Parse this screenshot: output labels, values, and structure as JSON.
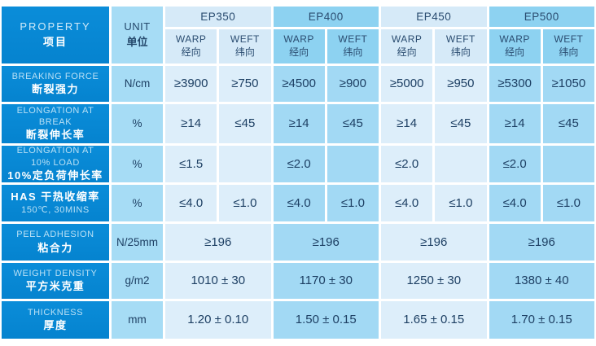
{
  "palette": {
    "property_column": "#0689d5",
    "unit_column": "#a6dcf5",
    "group_light_header": "#d6eaf8",
    "group_light_cell": "#ddeefa",
    "group_medium_header": "#8dd2f1",
    "group_medium_cell": "#a2d9f4",
    "value_text": "#1d3f63",
    "label_text_light": "#b9e0f5",
    "label_text_white": "#ffffff"
  },
  "table": {
    "property_header": {
      "en": "PROPERTY",
      "zh": "项目"
    },
    "unit_header": {
      "en": "UNIT",
      "zh": "单位"
    },
    "warp": {
      "en": "WARP",
      "zh": "经向"
    },
    "weft": {
      "en": "WEFT",
      "zh": "纬向"
    },
    "products": [
      "EP350",
      "EP400",
      "EP450",
      "EP500"
    ],
    "rows": [
      {
        "label_en": "BREAKING FORCE",
        "label_zh": "断裂强力",
        "unit": "N/cm",
        "type": "split",
        "values": [
          [
            "≥3900",
            "≥750"
          ],
          [
            "≥4500",
            "≥900"
          ],
          [
            "≥5000",
            "≥950"
          ],
          [
            "≥5300",
            "≥1050"
          ]
        ]
      },
      {
        "label_en": "ELONGATION AT BREAK",
        "label_zh": "断裂伸长率",
        "unit": "%",
        "type": "split",
        "values": [
          [
            "≥14",
            "≤45"
          ],
          [
            "≥14",
            "≤45"
          ],
          [
            "≥14",
            "≤45"
          ],
          [
            "≥14",
            "≤45"
          ]
        ]
      },
      {
        "label_en": "ELONGATION AT 10% LOAD",
        "label_zh": "10%定负荷伸长率",
        "unit": "%",
        "type": "warp-only",
        "values": [
          "≤1.5",
          "≤2.0",
          "≤2.0",
          "≤2.0"
        ]
      },
      {
        "label_zh": "HAS  干热收缩率",
        "label_en": "150℃, 30MINS",
        "unit": "%",
        "type": "split",
        "values": [
          [
            "≤4.0",
            "≤1.0"
          ],
          [
            "≤4.0",
            "≤1.0"
          ],
          [
            "≤4.0",
            "≤1.0"
          ],
          [
            "≤4.0",
            "≤1.0"
          ]
        ]
      },
      {
        "label_en": "PEEL ADHESION",
        "label_zh": "粘合力",
        "unit": "N/25mm",
        "type": "merged",
        "values": [
          "≥196",
          "≥196",
          "≥196",
          "≥196"
        ]
      },
      {
        "label_en": "WEIGHT DENSITY",
        "label_zh": "平方米克重",
        "unit": "g/m2",
        "type": "merged",
        "values": [
          "1010 ± 30",
          "1170 ± 30",
          "1250 ± 30",
          "1380 ± 40"
        ]
      },
      {
        "label_en": "THICKNESS",
        "label_zh": "厚度",
        "unit": "mm",
        "type": "merged",
        "values": [
          "1.20 ± 0.10",
          "1.50 ± 0.15",
          "1.65 ± 0.15",
          "1.70 ± 0.15"
        ]
      }
    ]
  }
}
